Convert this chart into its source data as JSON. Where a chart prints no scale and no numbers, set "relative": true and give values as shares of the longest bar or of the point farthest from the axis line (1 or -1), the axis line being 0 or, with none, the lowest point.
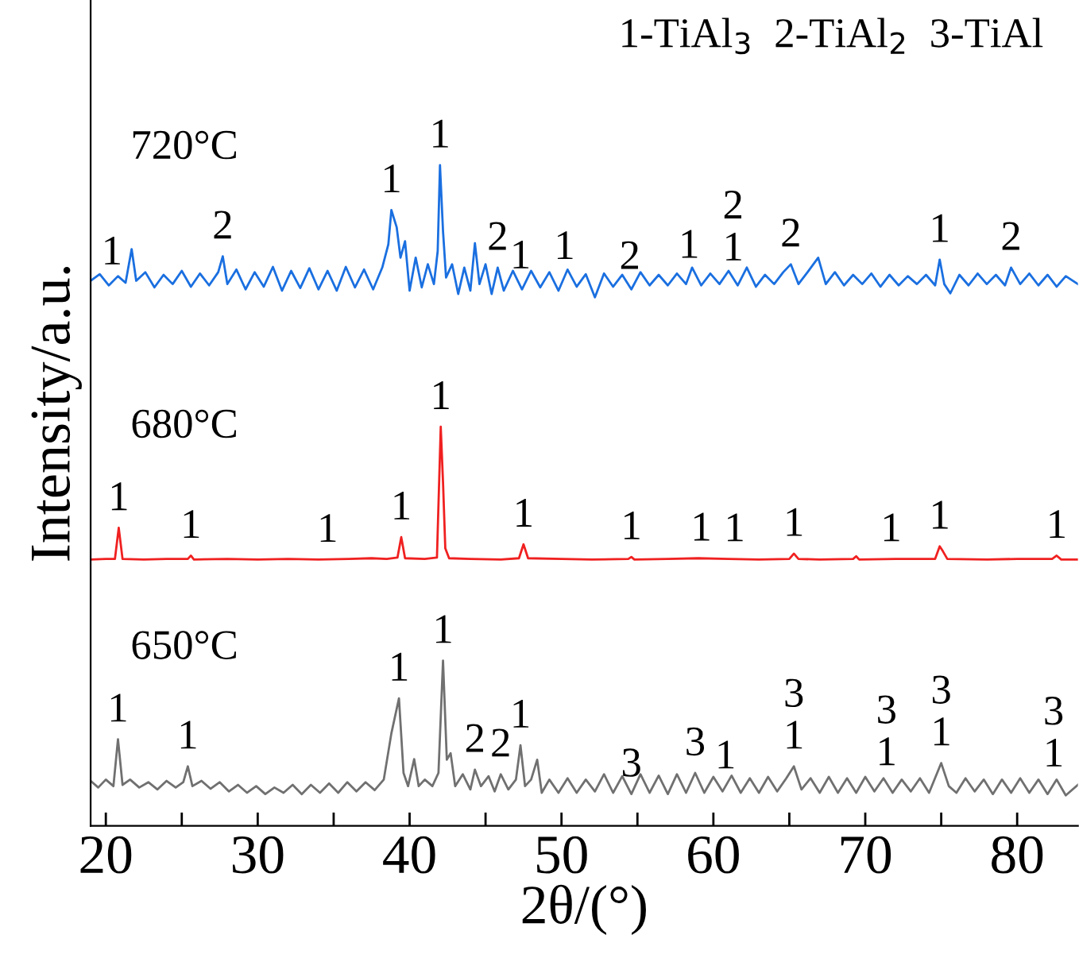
{
  "chart_data": {
    "type": "line",
    "relative": true,
    "xlabel": "2θ/(°)",
    "ylabel": "Intensity/a.u.",
    "xlim": [
      19,
      84
    ],
    "xticks": [
      20,
      {
        "value": 25,
        "label": null
      },
      30,
      {
        "value": 35,
        "label": null
      },
      40,
      {
        "value": 45,
        "label": null
      },
      50,
      {
        "value": 55,
        "label": null
      },
      60,
      {
        "value": 65,
        "label": null
      },
      70,
      {
        "value": 75,
        "label": null
      },
      80
    ],
    "tick_labels": "x",
    "grid": false,
    "legend": false,
    "marker": "none",
    "line_style": "solid",
    "series": [
      {
        "name": "720°C",
        "color": "#1a6fe0",
        "x": [
          19.0,
          19.6,
          20.2,
          20.8,
          21.3,
          21.7,
          22.0,
          22.6,
          23.2,
          23.8,
          24.4,
          25.0,
          25.6,
          26.2,
          26.8,
          27.4,
          27.7,
          28.0,
          28.6,
          29.2,
          29.8,
          30.4,
          31.0,
          31.6,
          32.2,
          32.8,
          33.4,
          34.0,
          34.6,
          35.2,
          35.8,
          36.4,
          37.0,
          37.6,
          38.2,
          38.6,
          38.8,
          39.15,
          39.4,
          39.7,
          40.0,
          40.4,
          40.8,
          41.2,
          41.6,
          41.85,
          42.0,
          42.2,
          42.4,
          42.8,
          43.2,
          43.6,
          44.0,
          44.3,
          44.6,
          45.0,
          45.4,
          45.8,
          46.2,
          46.8,
          47.4,
          48.0,
          48.6,
          49.2,
          49.8,
          50.4,
          51.0,
          51.6,
          52.2,
          52.8,
          53.4,
          54.0,
          54.6,
          55.2,
          55.8,
          56.4,
          57.0,
          57.6,
          58.2,
          58.6,
          59.2,
          59.8,
          60.4,
          61.0,
          61.6,
          62.2,
          62.8,
          63.4,
          64.0,
          64.6,
          65.1,
          65.6,
          66.2,
          66.9,
          67.4,
          68.0,
          68.6,
          69.2,
          69.8,
          70.4,
          71.0,
          71.6,
          72.2,
          72.8,
          73.4,
          74.0,
          74.6,
          74.9,
          75.2,
          75.6,
          76.2,
          76.8,
          77.4,
          78.0,
          78.6,
          79.2,
          79.6,
          80.2,
          80.8,
          81.4,
          82.0,
          82.6,
          83.2,
          84.0
        ],
        "values": [
          0.825,
          0.835,
          0.818,
          0.832,
          0.822,
          0.873,
          0.825,
          0.838,
          0.815,
          0.834,
          0.82,
          0.84,
          0.816,
          0.836,
          0.818,
          0.838,
          0.862,
          0.82,
          0.842,
          0.812,
          0.838,
          0.816,
          0.846,
          0.81,
          0.84,
          0.814,
          0.844,
          0.812,
          0.84,
          0.81,
          0.846,
          0.815,
          0.842,
          0.812,
          0.845,
          0.88,
          0.932,
          0.906,
          0.86,
          0.885,
          0.81,
          0.86,
          0.815,
          0.85,
          0.82,
          0.87,
          1.0,
          0.9,
          0.83,
          0.85,
          0.805,
          0.845,
          0.81,
          0.882,
          0.82,
          0.85,
          0.805,
          0.845,
          0.81,
          0.84,
          0.812,
          0.84,
          0.815,
          0.838,
          0.81,
          0.842,
          0.816,
          0.835,
          0.8,
          0.836,
          0.816,
          0.834,
          0.812,
          0.838,
          0.818,
          0.834,
          0.818,
          0.836,
          0.82,
          0.845,
          0.818,
          0.836,
          0.82,
          0.84,
          0.818,
          0.845,
          0.816,
          0.834,
          0.82,
          0.838,
          0.85,
          0.82,
          0.838,
          0.86,
          0.82,
          0.838,
          0.818,
          0.834,
          0.82,
          0.836,
          0.816,
          0.834,
          0.818,
          0.832,
          0.82,
          0.834,
          0.818,
          0.857,
          0.82,
          0.806,
          0.834,
          0.818,
          0.836,
          0.82,
          0.834,
          0.818,
          0.845,
          0.82,
          0.836,
          0.818,
          0.834,
          0.816,
          0.832,
          0.82
        ]
      },
      {
        "name": "680°C",
        "color": "#f02020",
        "x": [
          19.0,
          20.0,
          20.6,
          20.85,
          21.1,
          22.5,
          24.0,
          25.4,
          25.6,
          25.8,
          28,
          30,
          32,
          34,
          36,
          37.5,
          38.5,
          39.2,
          39.45,
          39.7,
          41.0,
          41.8,
          42.05,
          42.2,
          42.35,
          42.6,
          44,
          46,
          47.2,
          47.5,
          47.8,
          50,
          52,
          54.4,
          54.6,
          54.8,
          57,
          59,
          61,
          63,
          65.0,
          65.3,
          65.6,
          67,
          69.2,
          69.4,
          69.6,
          72,
          74.6,
          74.9,
          75.1,
          75.4,
          78,
          80,
          82.3,
          82.6,
          82.9,
          84
        ],
        "values": [
          0.403,
          0.404,
          0.404,
          0.451,
          0.404,
          0.403,
          0.404,
          0.404,
          0.409,
          0.403,
          0.404,
          0.403,
          0.404,
          0.403,
          0.404,
          0.405,
          0.404,
          0.406,
          0.437,
          0.405,
          0.404,
          0.406,
          0.604,
          0.52,
          0.42,
          0.405,
          0.404,
          0.403,
          0.405,
          0.426,
          0.405,
          0.404,
          0.403,
          0.404,
          0.407,
          0.403,
          0.404,
          0.405,
          0.404,
          0.403,
          0.404,
          0.412,
          0.404,
          0.403,
          0.404,
          0.408,
          0.403,
          0.404,
          0.404,
          0.423,
          0.416,
          0.404,
          0.403,
          0.404,
          0.404,
          0.409,
          0.403,
          0.403
        ]
      },
      {
        "name": "650°C",
        "color": "#707070",
        "x": [
          19.0,
          19.5,
          20.0,
          20.5,
          20.8,
          21.1,
          21.6,
          22.2,
          22.8,
          23.4,
          24.0,
          24.6,
          25.1,
          25.4,
          25.7,
          26.3,
          26.9,
          27.5,
          28.1,
          28.7,
          29.3,
          29.9,
          30.5,
          31.1,
          31.7,
          32.3,
          32.9,
          33.5,
          34.1,
          34.7,
          35.3,
          35.9,
          36.5,
          37.1,
          37.7,
          38.3,
          38.8,
          39.3,
          39.6,
          39.9,
          40.3,
          40.6,
          41.0,
          41.5,
          41.9,
          42.2,
          42.45,
          42.7,
          43.0,
          43.5,
          44.0,
          44.3,
          44.7,
          45.2,
          45.6,
          46.0,
          46.5,
          47.0,
          47.3,
          47.6,
          48.0,
          48.4,
          48.7,
          49.2,
          49.8,
          50.4,
          51.0,
          51.6,
          52.2,
          52.8,
          53.4,
          54.0,
          54.6,
          55.2,
          55.8,
          56.4,
          57.0,
          57.6,
          58.2,
          58.8,
          59.4,
          60.0,
          60.6,
          61.2,
          61.8,
          62.4,
          63.0,
          63.6,
          64.2,
          64.8,
          65.3,
          65.8,
          66.4,
          67.0,
          67.6,
          68.2,
          68.8,
          69.4,
          70.0,
          70.6,
          71.2,
          71.8,
          72.4,
          73.0,
          73.6,
          74.2,
          75.0,
          75.5,
          76.0,
          76.6,
          77.2,
          77.8,
          78.4,
          79.0,
          79.6,
          80.2,
          80.8,
          81.4,
          82.0,
          82.6,
          83.2,
          84.0
        ],
        "values": [
          0.068,
          0.058,
          0.07,
          0.06,
          0.131,
          0.062,
          0.07,
          0.058,
          0.066,
          0.055,
          0.068,
          0.058,
          0.066,
          0.09,
          0.06,
          0.068,
          0.056,
          0.066,
          0.052,
          0.062,
          0.05,
          0.06,
          0.048,
          0.058,
          0.05,
          0.062,
          0.048,
          0.062,
          0.05,
          0.064,
          0.05,
          0.066,
          0.052,
          0.066,
          0.054,
          0.07,
          0.14,
          0.193,
          0.08,
          0.06,
          0.101,
          0.06,
          0.07,
          0.06,
          0.08,
          0.25,
          0.1,
          0.11,
          0.06,
          0.078,
          0.055,
          0.085,
          0.06,
          0.075,
          0.052,
          0.078,
          0.055,
          0.07,
          0.122,
          0.06,
          0.07,
          0.1,
          0.05,
          0.07,
          0.05,
          0.072,
          0.05,
          0.07,
          0.052,
          0.078,
          0.05,
          0.075,
          0.048,
          0.078,
          0.05,
          0.076,
          0.048,
          0.078,
          0.05,
          0.08,
          0.05,
          0.074,
          0.052,
          0.076,
          0.05,
          0.072,
          0.05,
          0.074,
          0.052,
          0.072,
          0.09,
          0.055,
          0.072,
          0.05,
          0.074,
          0.05,
          0.072,
          0.05,
          0.074,
          0.052,
          0.072,
          0.05,
          0.07,
          0.052,
          0.072,
          0.05,
          0.095,
          0.06,
          0.05,
          0.072,
          0.052,
          0.07,
          0.048,
          0.07,
          0.05,
          0.072,
          0.05,
          0.07,
          0.048,
          0.07,
          0.046,
          0.062
        ]
      }
    ],
    "annotations": [
      "1-TiAl$_{3}$  2-TiAl$_{2}$  3-TiAl",
      {
        "text": "1",
        "x": 20.4,
        "y": 0.823
      },
      {
        "text": "2",
        "x": 27.7,
        "y": 0.862
      },
      {
        "text": "1",
        "x": 38.8,
        "y": 0.932
      },
      {
        "text": "1",
        "x": 42.0,
        "y": 1.0
      },
      {
        "text": "2",
        "x": 45.8,
        "y": 0.845
      },
      {
        "text": "1",
        "x": 47.3,
        "y": 0.817
      },
      {
        "text": "1",
        "x": 50.2,
        "y": 0.831
      },
      {
        "text": "2",
        "x": 54.5,
        "y": 0.816
      },
      {
        "text": "1",
        "x": 58.4,
        "y": 0.833
      },
      {
        "text": "1",
        "x": 61.3,
        "y": 0.829
      },
      {
        "text": "2",
        "x": 61.3,
        "y": 0.829
      },
      {
        "text": "2",
        "x": 65.1,
        "y": 0.85
      },
      {
        "text": "1",
        "x": 74.9,
        "y": 0.857
      },
      {
        "text": "2",
        "x": 79.6,
        "y": 0.845
      },
      {
        "text": "1",
        "x": 20.85,
        "y": 0.451
      },
      {
        "text": "1",
        "x": 25.6,
        "y": 0.409
      },
      {
        "text": "1",
        "x": 34.6,
        "y": 0.403
      },
      {
        "text": "1",
        "x": 39.45,
        "y": 0.437
      },
      {
        "text": "1",
        "x": 42.05,
        "y": 0.604
      },
      {
        "text": "1",
        "x": 47.5,
        "y": 0.426
      },
      {
        "text": "1",
        "x": 54.6,
        "y": 0.407
      },
      {
        "text": "1",
        "x": 59.2,
        "y": 0.405
      },
      {
        "text": "1",
        "x": 61.4,
        "y": 0.404
      },
      {
        "text": "1",
        "x": 65.3,
        "y": 0.412
      },
      {
        "text": "1",
        "x": 71.7,
        "y": 0.404
      },
      {
        "text": "1",
        "x": 74.9,
        "y": 0.423
      },
      {
        "text": "1",
        "x": 82.6,
        "y": 0.409
      },
      {
        "text": "1",
        "x": 20.8,
        "y": 0.131
      },
      {
        "text": "1",
        "x": 25.4,
        "y": 0.09
      },
      {
        "text": "1",
        "x": 39.3,
        "y": 0.193
      },
      {
        "text": "1",
        "x": 42.2,
        "y": 0.25
      },
      {
        "text": "2",
        "x": 44.3,
        "y": 0.085
      },
      {
        "text": "2",
        "x": 46.0,
        "y": 0.078
      },
      {
        "text": "1",
        "x": 47.3,
        "y": 0.122
      },
      {
        "text": "3",
        "x": 54.6,
        "y": 0.048
      },
      {
        "text": "3",
        "x": 58.8,
        "y": 0.08
      },
      {
        "text": "1",
        "x": 60.8,
        "y": 0.06
      },
      {
        "text": "1",
        "x": 65.3,
        "y": 0.09
      },
      {
        "text": "3",
        "x": 65.3,
        "y": 0.09
      },
      {
        "text": "1",
        "x": 71.4,
        "y": 0.065
      },
      {
        "text": "3",
        "x": 71.4,
        "y": 0.065
      },
      {
        "text": "1",
        "x": 75.0,
        "y": 0.095
      },
      {
        "text": "3",
        "x": 75.0,
        "y": 0.095
      },
      {
        "text": "1",
        "x": 82.4,
        "y": 0.063
      },
      {
        "text": "3",
        "x": 82.4,
        "y": 0.063
      }
    ]
  }
}
